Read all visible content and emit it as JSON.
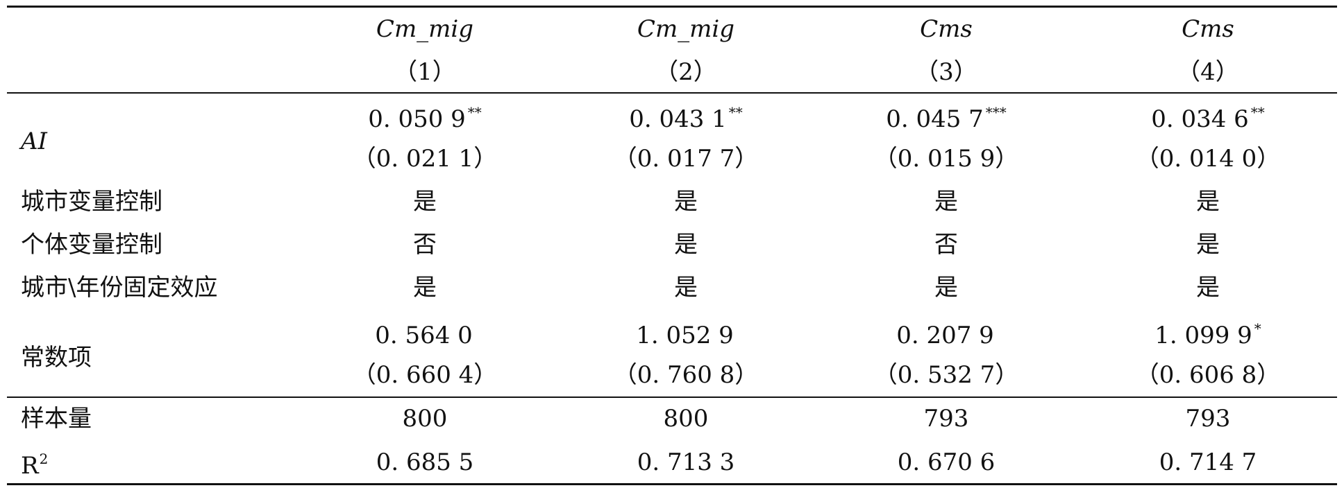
{
  "header": {
    "dep_vars": [
      "Cm_mig",
      "Cm_mig",
      "Cms",
      "Cms"
    ],
    "col_nums": [
      "（1）",
      "（2）",
      "（3）",
      "（4）"
    ]
  },
  "ai_row": {
    "label": "AI",
    "coefs": [
      {
        "value": "0. 050 9",
        "stars": "**"
      },
      {
        "value": "0. 043 1",
        "stars": "**"
      },
      {
        "value": "0. 045 7",
        "stars": "***"
      },
      {
        "value": "0. 034 6",
        "stars": "**"
      }
    ],
    "se": [
      "（0. 021 1）",
      "（0. 017 7）",
      "（0. 015 9）",
      "（0. 014 0）"
    ]
  },
  "controls": [
    {
      "label": "城市变量控制",
      "values": [
        "是",
        "是",
        "是",
        "是"
      ]
    },
    {
      "label": "个体变量控制",
      "values": [
        "否",
        "是",
        "否",
        "是"
      ]
    },
    {
      "label": "城市\\年份固定效应",
      "values": [
        "是",
        "是",
        "是",
        "是"
      ]
    }
  ],
  "const_row": {
    "label": "常数项",
    "coefs": [
      {
        "value": "0. 564 0",
        "stars": ""
      },
      {
        "value": "1. 052 9",
        "stars": ""
      },
      {
        "value": "0. 207 9",
        "stars": ""
      },
      {
        "value": "1. 099 9",
        "stars": "*"
      }
    ],
    "se": [
      "（0. 660 4）",
      "（0. 760 8）",
      "（0. 532 7）",
      "（0. 606 8）"
    ]
  },
  "n_row": {
    "label": "样本量",
    "values": [
      "800",
      "800",
      "793",
      "793"
    ]
  },
  "r2_row": {
    "label_main": "R",
    "label_sup": "2",
    "values": [
      "0. 685 5",
      "0. 713 3",
      "0. 670 6",
      "0. 714 7"
    ]
  }
}
